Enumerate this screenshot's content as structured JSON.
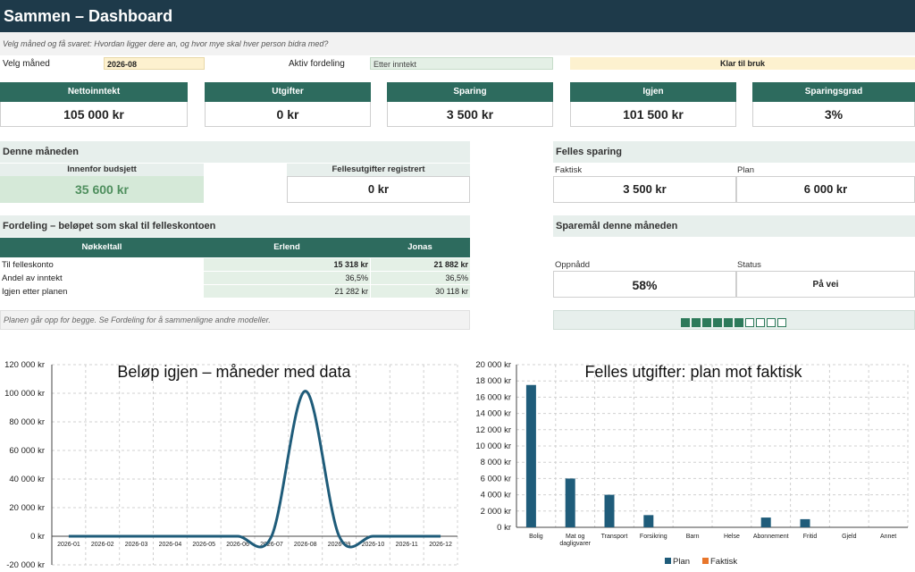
{
  "header": {
    "title": "Sammen – Dashboard"
  },
  "subtitle": "Velg måned og få svaret: Hvordan ligger dere an, og hvor mye skal hver person bidra med?",
  "controls": {
    "month_label": "Velg måned",
    "month_value": "2026-08",
    "dist_label": "Aktiv fordeling",
    "dist_value": "Etter inntekt",
    "status_value": "Klar til bruk"
  },
  "kpis": [
    {
      "label": "Nettoinntekt",
      "value": "105 000 kr"
    },
    {
      "label": "Utgifter",
      "value": "0 kr"
    },
    {
      "label": "Sparing",
      "value": "3 500 kr"
    },
    {
      "label": "Igjen",
      "value": "101 500 kr"
    },
    {
      "label": "Sparingsgrad",
      "value": "3%"
    }
  ],
  "month_section": {
    "title": "Denne måneden",
    "within_budget_label": "Innenfor budsjett",
    "within_budget_value": "35 600 kr",
    "shared_label": "Fellesutgifter registrert",
    "shared_value": "0 kr"
  },
  "savings_section": {
    "title": "Felles sparing",
    "actual_label": "Faktisk",
    "actual_value": "3 500 kr",
    "plan_label": "Plan",
    "plan_value": "6 000 kr"
  },
  "distribution": {
    "title": "Fordeling – beløpet som skal til felleskontoen",
    "headers": [
      "Nøkkeltall",
      "Erlend",
      "Jonas"
    ],
    "rows": [
      {
        "label": "Til felleskonto",
        "a": "15 318 kr",
        "b": "21 882 kr",
        "bold": true
      },
      {
        "label": "Andel av inntekt",
        "a": "36,5%",
        "b": "36,5%"
      },
      {
        "label": "Igjen etter planen",
        "a": "21 282 kr",
        "b": "30 118 kr"
      }
    ],
    "note": "Planen går opp for begge. Se Fordeling for å sammenligne andre modeller."
  },
  "goal_section": {
    "title": "Sparemål denne måneden",
    "achieved_label": "Oppnådd",
    "achieved_value": "58%",
    "status_label": "Status",
    "status_value": "På vei",
    "progress": 0.6,
    "progress_squares": 10,
    "colors": {
      "fill": "#2d7a5a",
      "empty": "#ffffff"
    }
  },
  "chart_data": [
    {
      "type": "line",
      "title": "Beløp igjen – måneder med data",
      "x": [
        "2026-01",
        "2026-02",
        "2026-03",
        "2026-04",
        "2026-05",
        "2026-06",
        "2026-07",
        "2026-08",
        "2026-09",
        "2026-10",
        "2026-11",
        "2026-12"
      ],
      "series": [
        {
          "values": [
            0,
            0,
            0,
            0,
            0,
            0,
            0,
            101500,
            0,
            0,
            0,
            0
          ]
        }
      ],
      "ylim": [
        -20000,
        120000
      ],
      "yticks": [
        "-20 000 kr",
        "0 kr",
        "20 000 kr",
        "40 000 kr",
        "60 000 kr",
        "80 000 kr",
        "100 000 kr",
        "120 000 kr"
      ],
      "ytick_values": [
        -20000,
        0,
        20000,
        40000,
        60000,
        80000,
        100000,
        120000
      ],
      "color": "#1f5c7a",
      "grid": true
    },
    {
      "type": "bar",
      "title": "Felles utgifter: plan mot faktisk",
      "categories": [
        "Bolig",
        "Mat og dagligvarer",
        "Transport",
        "Forsikring",
        "Barn",
        "Helse",
        "Abonnement",
        "Fritid",
        "Gjeld",
        "Annet"
      ],
      "category_lines": [
        [
          "Bolig"
        ],
        [
          "Mat og",
          "dagligvarer"
        ],
        [
          "Transport"
        ],
        [
          "Forsikring"
        ],
        [
          "Barn"
        ],
        [
          "Helse"
        ],
        [
          "Abonnement"
        ],
        [
          "Fritid"
        ],
        [
          "Gjeld"
        ],
        [
          "Annet"
        ]
      ],
      "series": [
        {
          "name": "Plan",
          "values": [
            17500,
            6000,
            4000,
            1500,
            0,
            0,
            1200,
            1000,
            0,
            0
          ],
          "color": "#1f5c7a"
        },
        {
          "name": "Faktisk",
          "values": [
            0,
            0,
            0,
            0,
            0,
            0,
            0,
            0,
            0,
            0
          ],
          "color": "#e8762b"
        }
      ],
      "ylim": [
        0,
        20000
      ],
      "yticks": [
        "0 kr",
        "2 000 kr",
        "4 000 kr",
        "6 000 kr",
        "8 000 kr",
        "10 000 kr",
        "12 000 kr",
        "14 000 kr",
        "16 000 kr",
        "18 000 kr",
        "20 000 kr"
      ],
      "ytick_values": [
        0,
        2000,
        4000,
        6000,
        8000,
        10000,
        12000,
        14000,
        16000,
        18000,
        20000
      ],
      "legend": "bottom",
      "grid": true
    }
  ]
}
